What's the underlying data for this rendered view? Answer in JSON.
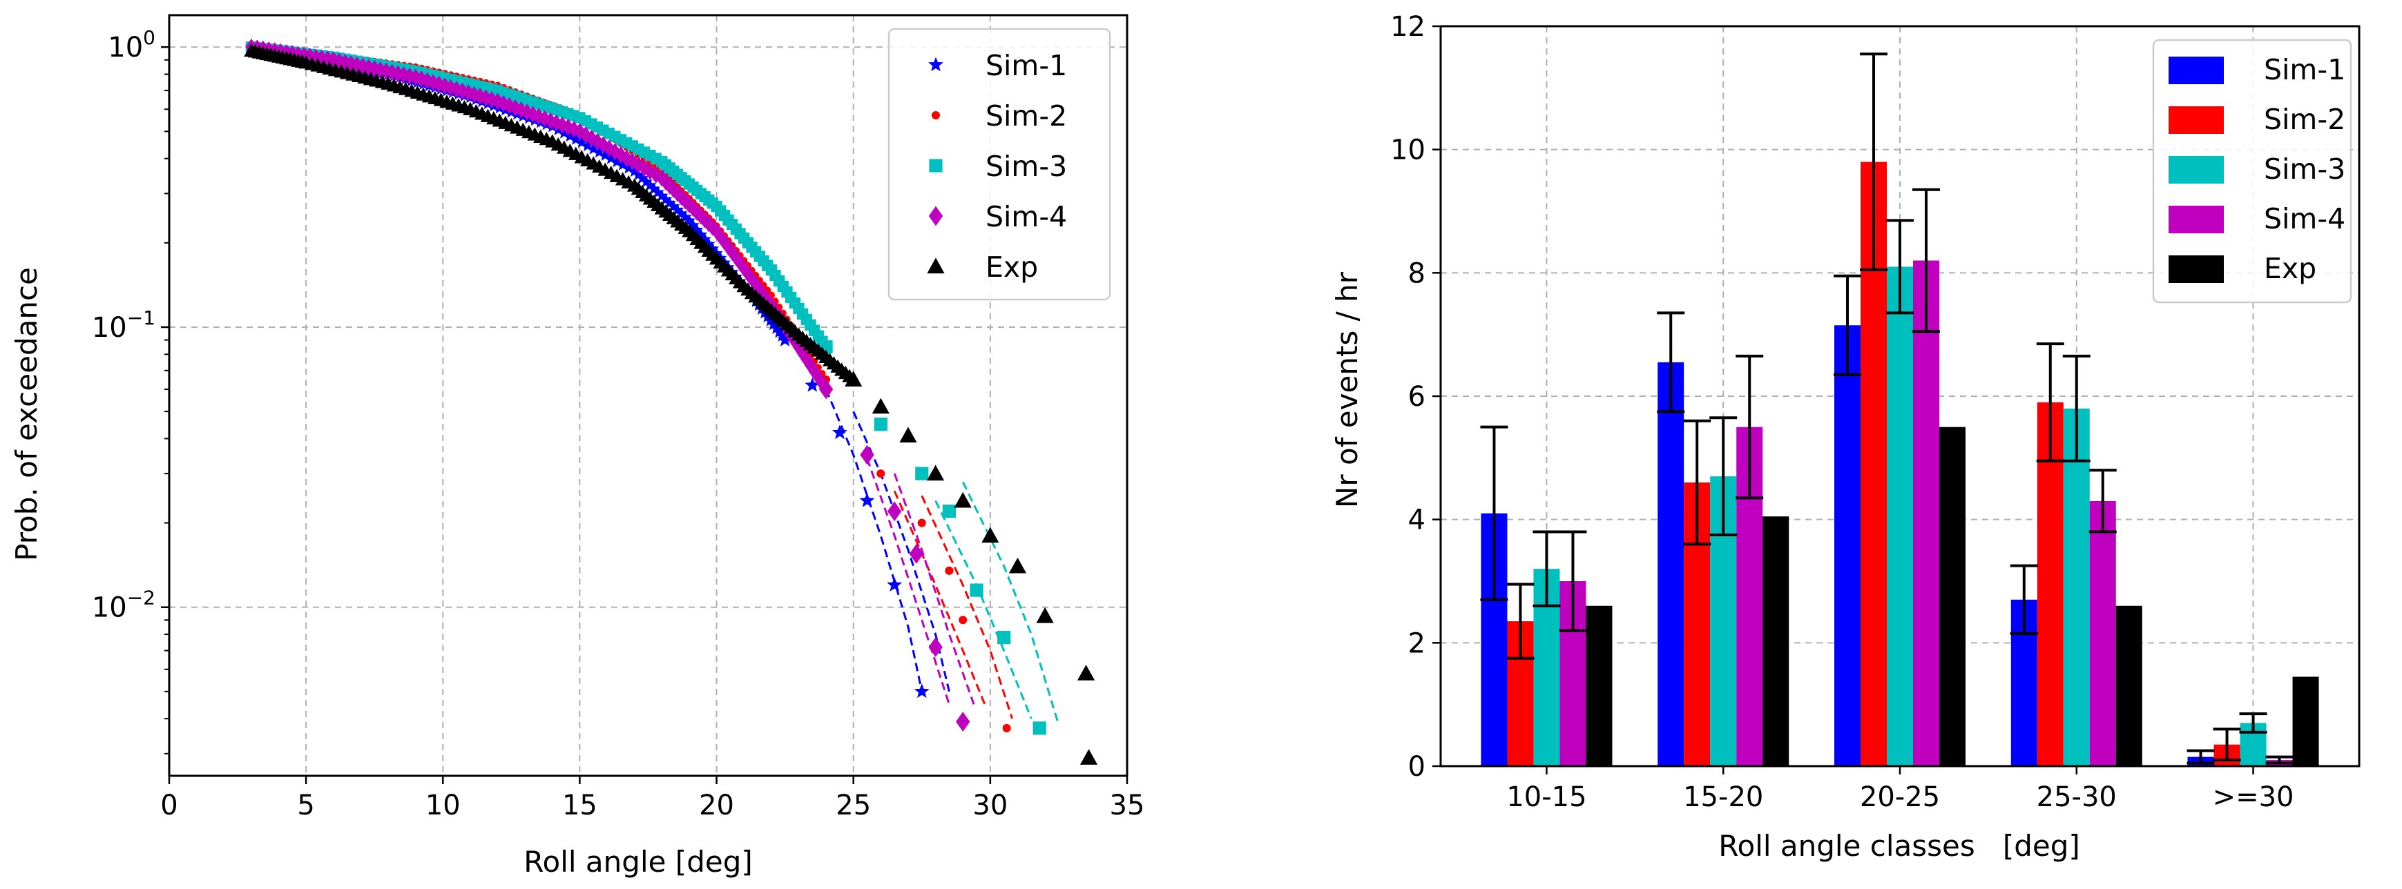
{
  "chart_data": [
    {
      "type": "scatter",
      "title": "",
      "xlabel": "Roll angle [deg]",
      "ylabel": "Prob. of exceedance",
      "xscale": "linear",
      "yscale": "log",
      "xlim": [
        0,
        35
      ],
      "ylim": [
        0.0025,
        1.3
      ],
      "xticks": [
        0,
        5,
        10,
        15,
        20,
        25,
        30,
        35
      ],
      "yticks": [
        {
          "value": 0.01,
          "label_base": "10",
          "label_exp": "−2"
        },
        {
          "value": 0.1,
          "label_base": "10",
          "label_exp": "−1"
        },
        {
          "value": 1,
          "label_base": "10",
          "label_exp": "0"
        }
      ],
      "grid": true,
      "legend_position": "top-right",
      "series": [
        {
          "name": "Sim-1",
          "marker": "star",
          "color": "#0000ff",
          "x": [
            3,
            5,
            8,
            11,
            14,
            17,
            19,
            21,
            22.5,
            23.5,
            24.5,
            25.5,
            26.5,
            27.5
          ],
          "y": [
            1.0,
            0.9,
            0.8,
            0.66,
            0.52,
            0.36,
            0.24,
            0.14,
            0.09,
            0.062,
            0.042,
            0.024,
            0.012,
            0.005
          ],
          "dashed_bounds": [
            {
              "x": [
                24,
                25,
                26,
                27,
                27.5
              ],
              "y": [
                0.06,
                0.035,
                0.018,
                0.0085,
                0.005
              ]
            },
            {
              "x": [
                25,
                26,
                27,
                28,
                28.5
              ],
              "y": [
                0.05,
                0.03,
                0.016,
                0.008,
                0.005
              ]
            }
          ]
        },
        {
          "name": "Sim-2",
          "marker": "circle",
          "color": "#ff0000",
          "x": [
            3,
            6,
            9,
            12,
            15,
            18,
            20,
            22,
            24,
            26,
            27.5,
            28.5,
            29,
            30.6
          ],
          "y": [
            1.0,
            0.93,
            0.85,
            0.73,
            0.57,
            0.36,
            0.23,
            0.13,
            0.065,
            0.03,
            0.02,
            0.0135,
            0.009,
            0.0037
          ],
          "dashed_bounds": [
            {
              "x": [
                26.5,
                28,
                29,
                29.8
              ],
              "y": [
                0.026,
                0.012,
                0.007,
                0.0045
              ]
            },
            {
              "x": [
                27.5,
                29,
                30,
                30.8
              ],
              "y": [
                0.025,
                0.012,
                0.007,
                0.004
              ]
            }
          ]
        },
        {
          "name": "Sim-3",
          "marker": "square",
          "color": "#00bfbf",
          "x": [
            3,
            6,
            9,
            12,
            15,
            18,
            20,
            22,
            24,
            26,
            27.5,
            28.5,
            29.5,
            30.5,
            31.8
          ],
          "y": [
            1.0,
            0.92,
            0.82,
            0.7,
            0.56,
            0.39,
            0.27,
            0.16,
            0.085,
            0.045,
            0.03,
            0.022,
            0.0115,
            0.0078,
            0.0037
          ],
          "dashed_bounds": [
            {
              "x": [
                28,
                29.5,
                30.5,
                31.5
              ],
              "y": [
                0.024,
                0.012,
                0.007,
                0.004
              ]
            },
            {
              "x": [
                29,
                30.5,
                31.5,
                32.5
              ],
              "y": [
                0.028,
                0.014,
                0.008,
                0.0038
              ]
            }
          ]
        },
        {
          "name": "Sim-4",
          "marker": "diamond",
          "color": "#bf00bf",
          "x": [
            3,
            6,
            9,
            12,
            15,
            18,
            20,
            22,
            24,
            25.5,
            26.5,
            27.3,
            28,
            29
          ],
          "y": [
            1.0,
            0.9,
            0.78,
            0.64,
            0.5,
            0.34,
            0.22,
            0.12,
            0.06,
            0.035,
            0.022,
            0.0155,
            0.0072,
            0.0039
          ],
          "dashed_bounds": [
            {
              "x": [
                25.5,
                26.5,
                27.5,
                28.5
              ],
              "y": [
                0.034,
                0.018,
                0.009,
                0.0045
              ]
            },
            {
              "x": [
                26.5,
                27.5,
                28.5,
                29.4
              ],
              "y": [
                0.03,
                0.016,
                0.008,
                0.0045
              ]
            }
          ]
        },
        {
          "name": "Exp",
          "marker": "triangle",
          "color": "#000000",
          "x": [
            3,
            5,
            8,
            11,
            14,
            17,
            19,
            21,
            23,
            25,
            26,
            27,
            28,
            29,
            30,
            31,
            32,
            33.5,
            33.6
          ],
          "y": [
            0.97,
            0.88,
            0.74,
            0.6,
            0.46,
            0.32,
            0.22,
            0.14,
            0.094,
            0.065,
            0.052,
            0.041,
            0.03,
            0.024,
            0.018,
            0.014,
            0.0093,
            0.0058,
            0.0029
          ]
        }
      ]
    },
    {
      "type": "bar",
      "title": "",
      "xlabel": "Roll angle classes   [deg]",
      "ylabel": "Nr of events / hr",
      "ylim": [
        0,
        12
      ],
      "yticks": [
        0,
        2,
        4,
        6,
        8,
        10,
        12
      ],
      "grid": true,
      "legend_position": "top-right",
      "categories": [
        "10-15",
        "15-20",
        "20-25",
        "25-30",
        ">=30"
      ],
      "series": [
        {
          "name": "Sim-1",
          "color": "#0000ff",
          "values": [
            4.1,
            6.55,
            7.15,
            2.7,
            0.15
          ],
          "err": [
            1.4,
            0.8,
            0.8,
            0.55,
            0.1
          ]
        },
        {
          "name": "Sim-2",
          "color": "#ff0000",
          "values": [
            2.35,
            4.6,
            9.8,
            5.9,
            0.35
          ],
          "err": [
            0.6,
            1.0,
            1.75,
            0.95,
            0.25
          ]
        },
        {
          "name": "Sim-3",
          "color": "#00bfbf",
          "values": [
            3.2,
            4.7,
            8.1,
            5.8,
            0.7
          ],
          "err": [
            0.6,
            0.95,
            0.75,
            0.85,
            0.15
          ]
        },
        {
          "name": "Sim-4",
          "color": "#bf00bf",
          "values": [
            3.0,
            5.5,
            8.2,
            4.3,
            0.1
          ],
          "err": [
            0.8,
            1.15,
            1.15,
            0.5,
            0.05
          ]
        },
        {
          "name": "Exp",
          "color": "#000000",
          "values": [
            2.6,
            4.05,
            5.5,
            2.6,
            1.45
          ],
          "err": null
        }
      ]
    }
  ]
}
